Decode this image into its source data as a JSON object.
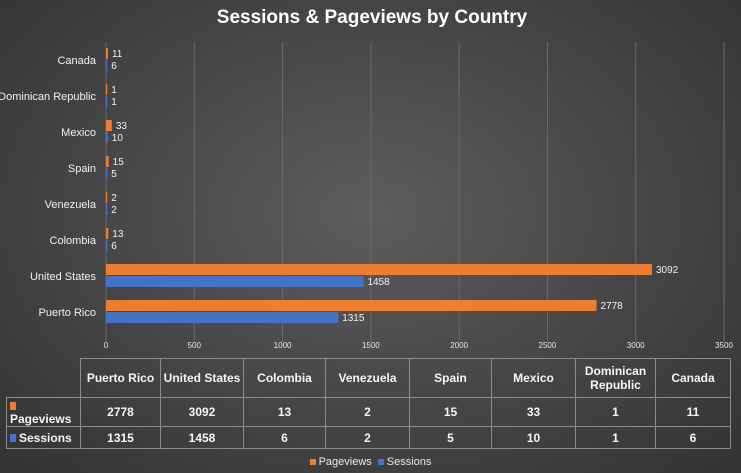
{
  "chart_data": {
    "type": "bar",
    "orientation": "horizontal",
    "title": "Sessions & Pageviews by Country",
    "categories": [
      "Canada",
      "Dominican Republic",
      "Mexico",
      "Spain",
      "Venezuela",
      "Colombia",
      "United States",
      "Puerto Rico"
    ],
    "series": [
      {
        "name": "Pageviews",
        "color": "#ed7d31",
        "values": [
          11,
          1,
          33,
          15,
          2,
          13,
          3092,
          2778
        ]
      },
      {
        "name": "Sessions",
        "color": "#4472c4",
        "values": [
          6,
          1,
          10,
          5,
          2,
          6,
          1458,
          1315
        ]
      }
    ],
    "xlim": [
      0,
      3500
    ],
    "xticks": [
      0,
      500,
      1000,
      1500,
      2000,
      2500,
      3000,
      3500
    ],
    "grid": true,
    "legend": "bottom",
    "data_table": {
      "columns": [
        "Puerto Rico",
        "United States",
        "Colombia",
        "Venezuela",
        "Spain",
        "Mexico",
        "Dominican Republic",
        "Canada"
      ],
      "rows": [
        {
          "name": "Pageviews",
          "values": [
            "2778",
            "3092",
            "13",
            "2",
            "15",
            "33",
            "1",
            "11"
          ]
        },
        {
          "name": "Sessions",
          "values": [
            "1315",
            "1458",
            "6",
            "2",
            "5",
            "10",
            "1",
            "6"
          ]
        }
      ]
    }
  }
}
